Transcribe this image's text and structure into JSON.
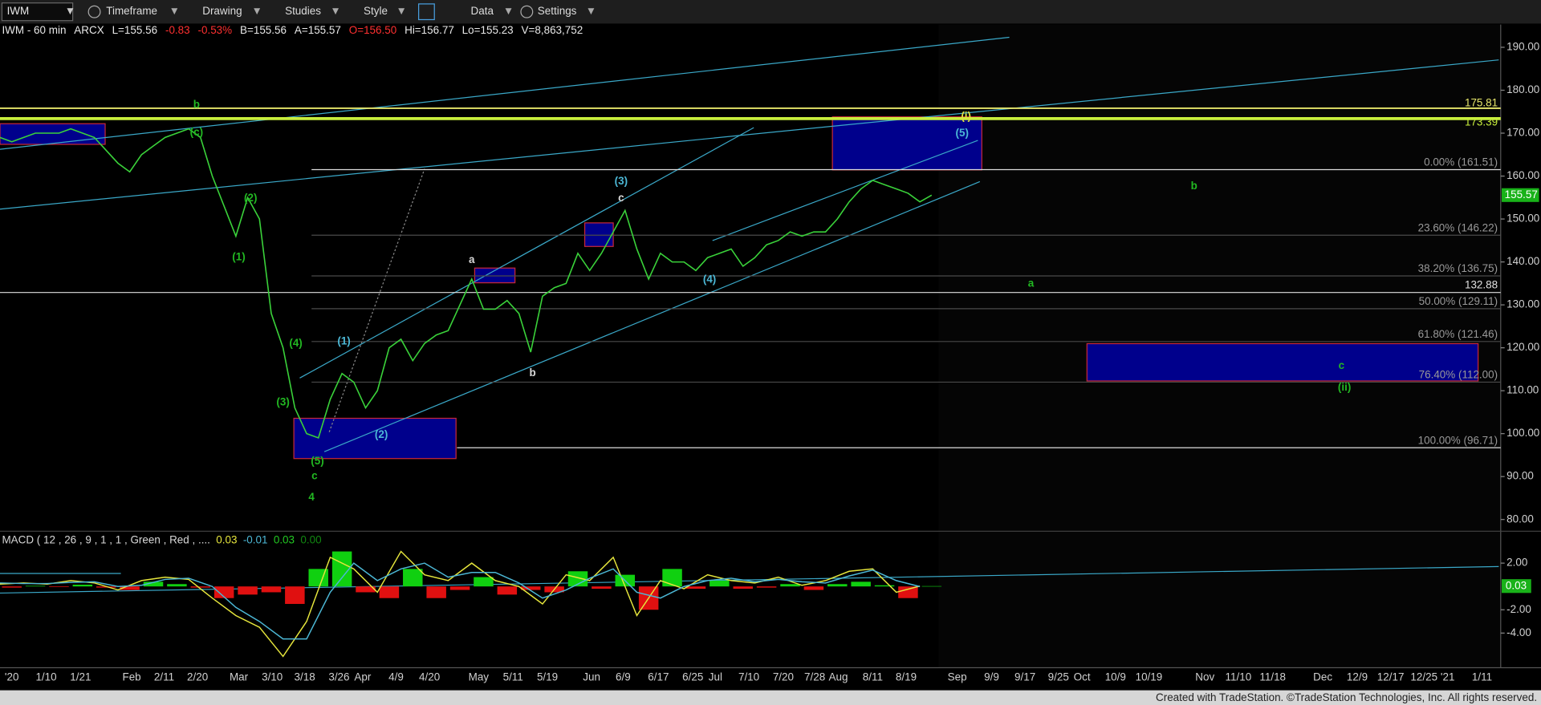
{
  "toolbar": {
    "symbol": "IWM",
    "items": [
      "Timeframe",
      "Drawing",
      "Studies",
      "Style",
      "Data",
      "Settings"
    ]
  },
  "chart_data": [
    {
      "type": "line",
      "header": [
        "IWM - 60 min",
        "ARCX",
        "L=155.56",
        "-0.83",
        "-0.53%",
        "B=155.56",
        "A=155.57",
        "O=156.50",
        "Hi=156.77",
        "Lo=155.23",
        "V=8,863,752"
      ],
      "color": "#3ad23a",
      "values": [
        169,
        168,
        169,
        170,
        170,
        170,
        171,
        170,
        169,
        166,
        163,
        161,
        165,
        167,
        169,
        170,
        171,
        169,
        160,
        153,
        146,
        155,
        150,
        128,
        120,
        106,
        100,
        99,
        108,
        114,
        112,
        106,
        110,
        120,
        122,
        117,
        121,
        123,
        124,
        130,
        136,
        129,
        129,
        131,
        128,
        119,
        132,
        134,
        135,
        142,
        138,
        142,
        147,
        152,
        143,
        136,
        142,
        140,
        140,
        138,
        141,
        142,
        143,
        139,
        141,
        144,
        145,
        147,
        146,
        147,
        147,
        150,
        154,
        157,
        159,
        158,
        157,
        156,
        154,
        155.56
      ],
      "ylim": [
        77.5,
        195.3
      ],
      "yticks": [
        {
          "value": 190,
          "label": "190.00"
        },
        {
          "value": 180,
          "label": "180.00"
        },
        {
          "value": 170,
          "label": "170.00"
        },
        {
          "value": 160,
          "label": "160.00"
        },
        {
          "value": 150,
          "label": "150.00"
        },
        {
          "value": 140,
          "label": "140.00"
        },
        {
          "value": 130,
          "label": "130.00"
        },
        {
          "value": 120,
          "label": "120.00"
        },
        {
          "value": 110,
          "label": "110.00"
        },
        {
          "value": 100,
          "label": "100.00"
        },
        {
          "value": 90,
          "label": "90.00"
        },
        {
          "value": 80,
          "label": "80.00"
        }
      ],
      "fib_levels": [
        {
          "value": 161.51,
          "label": "0.00% (161.51)"
        },
        {
          "value": 146.22,
          "label": "23.60% (146.22)"
        },
        {
          "value": 136.75,
          "label": "38.20% (136.75)"
        },
        {
          "value": 129.11,
          "label": "50.00% (129.11)"
        },
        {
          "value": 121.46,
          "label": "61.80% (121.46)"
        },
        {
          "value": 112.0,
          "label": "76.40% (112.00)"
        },
        {
          "value": 96.71,
          "label": "100.00% (96.71)"
        }
      ],
      "price_tags": [
        {
          "value": 175.81,
          "label": "175.81",
          "color": "#e6e66a"
        },
        {
          "value": 173.39,
          "label": "173.39",
          "color": "#c8ee3c"
        },
        {
          "value": 155.57,
          "label": "155.57",
          "color": "#19b219"
        },
        {
          "value": 132.88,
          "label": "132.88",
          "color": "#e0e0e0"
        }
      ],
      "annotations": [
        {
          "text": "b",
          "color": "#22b822"
        },
        {
          "text": "(c)",
          "color": "#22b822"
        },
        {
          "text": "(2)",
          "color": "#22b822"
        },
        {
          "text": "(1)",
          "color": "#22b822"
        },
        {
          "text": "(4)",
          "color": "#22b822"
        },
        {
          "text": "(3)",
          "color": "#22b822"
        },
        {
          "text": "(5)",
          "color": "#22b822"
        },
        {
          "text": "c",
          "color": "#22b822"
        },
        {
          "text": "4",
          "color": "#22b822"
        },
        {
          "text": "(1)",
          "color": "#4cb8d6"
        },
        {
          "text": "(2)",
          "color": "#4cb8d6"
        },
        {
          "text": "a",
          "color": "#d8d8d8"
        },
        {
          "text": "b",
          "color": "#d8d8d8"
        },
        {
          "text": "c",
          "color": "#d8d8d8"
        },
        {
          "text": "(3)",
          "color": "#4cb8d6"
        },
        {
          "text": "(4)",
          "color": "#4cb8d6"
        },
        {
          "text": "(i)",
          "color": "#e0e040"
        },
        {
          "text": "(5)",
          "color": "#4cb8d6"
        },
        {
          "text": "b",
          "color": "#22b822"
        },
        {
          "text": "a",
          "color": "#22b822"
        },
        {
          "text": "c",
          "color": "#22b822"
        },
        {
          "text": "(ii)",
          "color": "#22b822"
        }
      ],
      "x_axis_labels": [
        "'20",
        "1/10",
        "1/21",
        "Feb",
        "2/11",
        "2/20",
        "Mar",
        "3/10",
        "3/18",
        "3/26",
        "Apr",
        "4/9",
        "4/20",
        "May",
        "5/11",
        "5/19",
        "Jun",
        "6/9",
        "6/17",
        "6/25",
        "Jul",
        "7/10",
        "7/20",
        "7/28",
        "Aug",
        "8/11",
        "8/19",
        "Sep",
        "9/9",
        "9/17",
        "9/25",
        "Oct",
        "10/9",
        "10/19",
        "Nov",
        "11/10",
        "11/18",
        "Dec",
        "12/9",
        "12/17",
        "12/25",
        "'21",
        "1/11"
      ]
    },
    {
      "type": "macd",
      "header": [
        {
          "text": "MACD ( 12 , 26 , 9 , 1 , 1 , Green , Red , ....",
          "color": "#d8d8d8"
        },
        {
          "text": "0.03",
          "color": "#e6e63c"
        },
        {
          "text": "-0.01",
          "color": "#4cb8d6"
        },
        {
          "text": "0.03",
          "color": "#22c822"
        },
        {
          "text": "0.00",
          "color": "#118811"
        }
      ],
      "series": [
        {
          "color": "#e6e63c",
          "values": [
            0.2,
            0.3,
            0.2,
            0.5,
            0.3,
            -0.3,
            0.5,
            0.8,
            0.6,
            -1,
            -2.5,
            -3.5,
            -6,
            -3,
            2.5,
            1.5,
            -0.5,
            3,
            1,
            0.5,
            2,
            0.5,
            0,
            -1.5,
            1,
            0.5,
            2.5,
            -2.5,
            0.5,
            -0.2,
            1,
            0.5,
            0.3,
            0.8,
            0.1,
            0.5,
            1.3,
            1.5,
            -0.5,
            0.03
          ]
        },
        {
          "color": "#4cb8d6",
          "values": [
            0.3,
            0.25,
            0.25,
            0.35,
            0.4,
            0,
            0.1,
            0.6,
            0.7,
            0,
            -1.8,
            -3,
            -4.5,
            -4.5,
            -0.5,
            2,
            0.5,
            1.5,
            2,
            0.8,
            1.2,
            1.2,
            0.3,
            -1,
            -0.3,
            0.7,
            1.5,
            -0.5,
            -1,
            0,
            0.5,
            0.7,
            0.4,
            0.6,
            0.4,
            0.3,
            0.9,
            1.4,
            0.5,
            -0.01
          ]
        }
      ],
      "histogram": {
        "up_color": "#10d010",
        "down_color": "#e01010",
        "values": [
          -0.1,
          0.05,
          -0.05,
          0.15,
          -0.1,
          -0.3,
          0.4,
          0.2,
          -0.1,
          -1,
          -0.7,
          -0.5,
          -1.5,
          1.5,
          3,
          -0.5,
          -1,
          1.5,
          -1,
          -0.3,
          0.8,
          -0.7,
          -0.3,
          -0.5,
          1.3,
          -0.2,
          1,
          -2,
          1.5,
          -0.2,
          0.5,
          -0.2,
          -0.1,
          0.2,
          -0.3,
          0.2,
          0.4,
          0.1,
          -1,
          0.03
        ]
      },
      "ylim": [
        -6.8,
        4.4
      ],
      "yticks": [
        {
          "value": 2,
          "label": "2.00"
        },
        {
          "value": -2,
          "label": "-2.00"
        },
        {
          "value": -4,
          "label": "-4.00"
        }
      ],
      "last_tag": {
        "value": 0.03,
        "label": "0.03",
        "color": "#19b219"
      }
    }
  ],
  "footer": "Created with TradeStation. ©TradeStation Technologies, Inc. All rights reserved."
}
